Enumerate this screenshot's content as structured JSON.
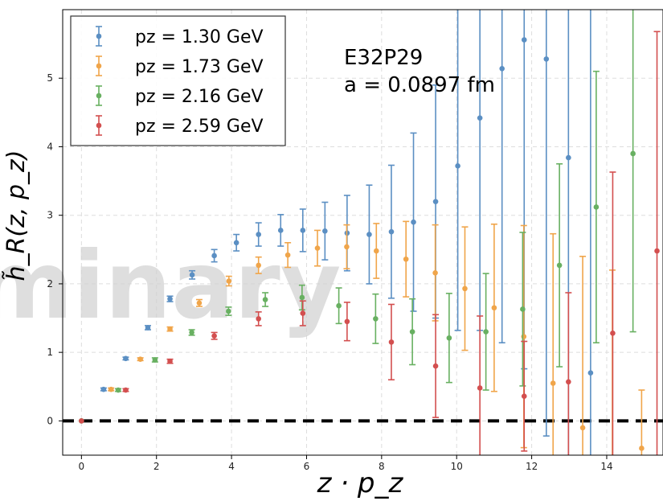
{
  "chart_data": {
    "type": "scatter",
    "xlabel": "z · p_z",
    "ylabel": "h̃_R(z, p_z)",
    "xlim": [
      -0.5,
      15.5
    ],
    "ylim": [
      -0.5,
      6.0
    ],
    "xticks": [
      0,
      2,
      4,
      6,
      8,
      10,
      12,
      14
    ],
    "yticks": [
      0,
      1,
      2,
      3,
      4,
      5
    ],
    "grid": true,
    "legend_position": "top-left",
    "annotation": [
      "E32P29",
      "a = 0.0897 fm"
    ],
    "watermark": "minary",
    "reference_line": {
      "y": 0,
      "style": "dashed",
      "color": "#000000"
    },
    "series": [
      {
        "name": "pz = 1.30 GeV",
        "color": "#5b8fc3",
        "x": [
          0.0,
          0.59,
          1.18,
          1.77,
          2.36,
          2.95,
          3.54,
          4.13,
          4.72,
          5.31,
          5.9,
          6.49,
          7.08,
          7.67,
          8.26,
          8.85,
          9.44,
          10.03,
          10.62,
          11.21,
          11.8,
          12.39,
          12.98,
          13.57
        ],
        "y": [
          0.0,
          0.46,
          0.91,
          1.36,
          1.78,
          2.13,
          2.41,
          2.6,
          2.72,
          2.78,
          2.78,
          2.77,
          2.74,
          2.72,
          2.76,
          2.9,
          3.2,
          3.72,
          4.42,
          5.14,
          5.56,
          5.28,
          3.84,
          0.7
        ],
        "err": [
          0.0,
          0.02,
          0.02,
          0.03,
          0.04,
          0.06,
          0.09,
          0.12,
          0.17,
          0.23,
          0.31,
          0.42,
          0.55,
          0.72,
          0.97,
          1.3,
          1.7,
          2.4,
          3.1,
          4.0,
          4.8,
          5.5,
          6.0,
          6.5
        ]
      },
      {
        "name": "pz = 1.73 GeV",
        "color": "#f0a54a",
        "x": [
          0.0,
          0.79,
          1.57,
          2.36,
          3.14,
          3.93,
          4.72,
          5.5,
          6.29,
          7.07,
          7.86,
          8.65,
          9.43,
          10.22,
          11.0,
          11.79,
          12.57,
          13.36,
          14.15,
          14.93
        ],
        "y": [
          0.0,
          0.46,
          0.9,
          1.34,
          1.72,
          2.04,
          2.27,
          2.42,
          2.52,
          2.54,
          2.48,
          2.36,
          2.16,
          1.93,
          1.65,
          1.23,
          0.55,
          -0.1,
          -0.8,
          -0.4
        ],
        "err": [
          0.0,
          0.02,
          0.02,
          0.03,
          0.05,
          0.07,
          0.12,
          0.18,
          0.26,
          0.32,
          0.4,
          0.55,
          0.7,
          0.9,
          1.22,
          1.62,
          2.18,
          2.5,
          3.0,
          0.85
        ]
      },
      {
        "name": "pz = 2.16 GeV",
        "color": "#68b061",
        "x": [
          0.0,
          0.98,
          1.96,
          2.94,
          3.92,
          4.9,
          5.88,
          6.86,
          7.84,
          8.82,
          9.8,
          10.78,
          11.76,
          12.74,
          13.72,
          14.7
        ],
        "y": [
          0.0,
          0.45,
          0.89,
          1.29,
          1.6,
          1.77,
          1.8,
          1.68,
          1.49,
          1.3,
          1.21,
          1.3,
          1.63,
          2.27,
          3.12,
          3.9
        ],
        "err": [
          0.0,
          0.02,
          0.03,
          0.04,
          0.06,
          0.1,
          0.18,
          0.26,
          0.36,
          0.48,
          0.65,
          0.85,
          1.12,
          1.48,
          1.98,
          2.6
        ]
      },
      {
        "name": "pz = 2.59 GeV",
        "color": "#d34f4f",
        "x": [
          0.0,
          1.18,
          2.36,
          3.54,
          4.72,
          5.9,
          7.08,
          8.26,
          9.44,
          10.62,
          11.8,
          12.98,
          14.16,
          15.34
        ],
        "y": [
          0.0,
          0.45,
          0.87,
          1.24,
          1.49,
          1.57,
          1.45,
          1.15,
          0.8,
          0.48,
          0.36,
          0.57,
          1.28,
          2.48
        ],
        "err": [
          0.0,
          0.02,
          0.03,
          0.05,
          0.1,
          0.18,
          0.28,
          0.55,
          0.75,
          1.05,
          0.8,
          1.3,
          2.35,
          3.2
        ]
      }
    ]
  }
}
